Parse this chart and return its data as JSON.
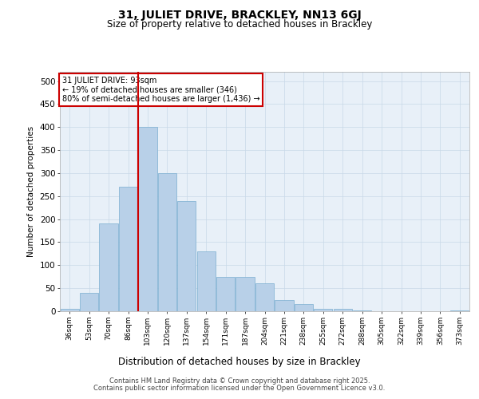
{
  "title": "31, JULIET DRIVE, BRACKLEY, NN13 6GJ",
  "subtitle": "Size of property relative to detached houses in Brackley",
  "xlabel": "Distribution of detached houses by size in Brackley",
  "ylabel": "Number of detached properties",
  "property_label": "31 JULIET DRIVE: 93sqm",
  "annotation_line1": "← 19% of detached houses are smaller (346)",
  "annotation_line2": "80% of semi-detached houses are larger (1,436) →",
  "categories": [
    "36sqm",
    "53sqm",
    "70sqm",
    "86sqm",
    "103sqm",
    "120sqm",
    "137sqm",
    "154sqm",
    "171sqm",
    "187sqm",
    "204sqm",
    "221sqm",
    "238sqm",
    "255sqm",
    "272sqm",
    "288sqm",
    "305sqm",
    "322sqm",
    "339sqm",
    "356sqm",
    "373sqm"
  ],
  "values": [
    5,
    40,
    190,
    270,
    400,
    300,
    240,
    130,
    75,
    75,
    60,
    25,
    15,
    5,
    5,
    2,
    0,
    0,
    0,
    0,
    2
  ],
  "bar_color": "#b8d0e8",
  "bar_edge_color": "#7aaed0",
  "vline_color": "#cc0000",
  "vline_x": 3.5,
  "annotation_box_color": "#cc0000",
  "background_color": "#ffffff",
  "plot_bg_color": "#e8f0f8",
  "grid_color": "#c8d8e8",
  "ylim": [
    0,
    520
  ],
  "yticks": [
    0,
    50,
    100,
    150,
    200,
    250,
    300,
    350,
    400,
    450,
    500
  ],
  "footer_line1": "Contains HM Land Registry data © Crown copyright and database right 2025.",
  "footer_line2": "Contains public sector information licensed under the Open Government Licence v3.0."
}
